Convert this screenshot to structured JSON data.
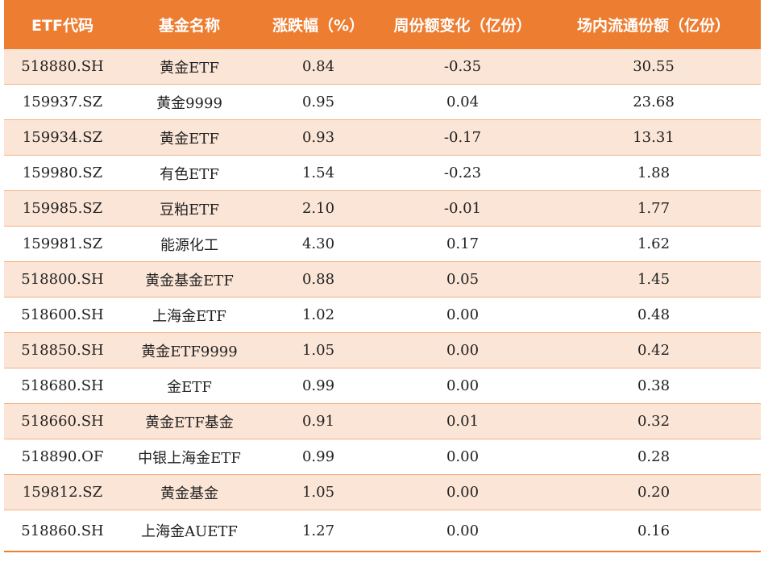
{
  "table": {
    "headers": [
      "ETF代码",
      "基金名称",
      "涨跌幅（%）",
      "周份额变化（亿份）",
      "场内流通份额（亿份）"
    ],
    "rows": [
      [
        "518880.SH",
        "黄金ETF",
        "0.84",
        "-0.35",
        "30.55"
      ],
      [
        "159937.SZ",
        "黄金9999",
        "0.95",
        "0.04",
        "23.68"
      ],
      [
        "159934.SZ",
        "黄金ETF",
        "0.93",
        "-0.17",
        "13.31"
      ],
      [
        "159980.SZ",
        "有色ETF",
        "1.54",
        "-0.23",
        "1.88"
      ],
      [
        "159985.SZ",
        "豆粕ETF",
        "2.10",
        "-0.01",
        "1.77"
      ],
      [
        "159981.SZ",
        "能源化工",
        "4.30",
        "0.17",
        "1.62"
      ],
      [
        "518800.SH",
        "黄金基金ETF",
        "0.88",
        "0.05",
        "1.45"
      ],
      [
        "518600.SH",
        "上海金ETF",
        "1.02",
        "0.00",
        "0.48"
      ],
      [
        "518850.SH",
        "黄金ETF9999",
        "1.05",
        "0.00",
        "0.42"
      ],
      [
        "518680.SH",
        "金ETF",
        "0.99",
        "0.00",
        "0.38"
      ],
      [
        "518660.SH",
        "黄金ETF基金",
        "0.91",
        "0.01",
        "0.32"
      ],
      [
        "518890.OF",
        "中银上海金ETF",
        "0.99",
        "0.00",
        "0.28"
      ],
      [
        "159812.SZ",
        "黄金基金",
        "1.05",
        "0.00",
        "0.20"
      ],
      [
        "518860.SH",
        "上海金AUETF",
        "1.27",
        "0.00",
        "0.16"
      ]
    ]
  },
  "colors": {
    "header_bg": "#ED7D31",
    "header_text": "#FFFFFF",
    "stripe_bg": "#FBE5D6",
    "row_divider": "#F4B183"
  }
}
